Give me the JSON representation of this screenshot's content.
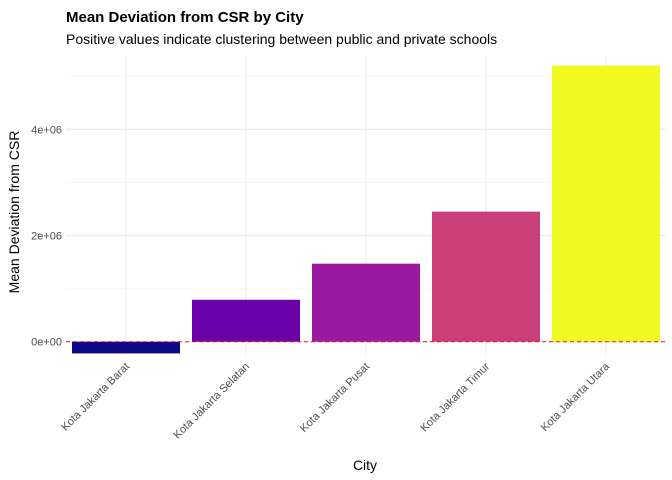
{
  "chart_data": {
    "type": "bar",
    "title": "Mean Deviation from CSR by City",
    "subtitle": "Positive values indicate clustering between public and private schools",
    "xlabel": "City",
    "ylabel": "Mean Deviation from CSR",
    "categories": [
      "Kota Jakarta Barat",
      "Kota Jakarta Selatan",
      "Kota Jakarta Pusat",
      "Kota Jakarta Timur",
      "Kota Jakarta Utara"
    ],
    "values": [
      -220000,
      790000,
      1470000,
      2450000,
      5200000
    ],
    "colors": [
      "#0D0887",
      "#6A00A8",
      "#9B1BA0",
      "#C93F7A",
      "#F0F921"
    ],
    "ylim": [
      -250000,
      5400000
    ],
    "yticks": [
      0,
      2000000,
      4000000
    ],
    "ytick_labels": [
      "0e+00",
      "2e+06",
      "4e+06"
    ],
    "reference_line": {
      "y": 0,
      "color": "#E41A1C",
      "style": "dashed"
    },
    "grid": true,
    "legend": "none"
  }
}
